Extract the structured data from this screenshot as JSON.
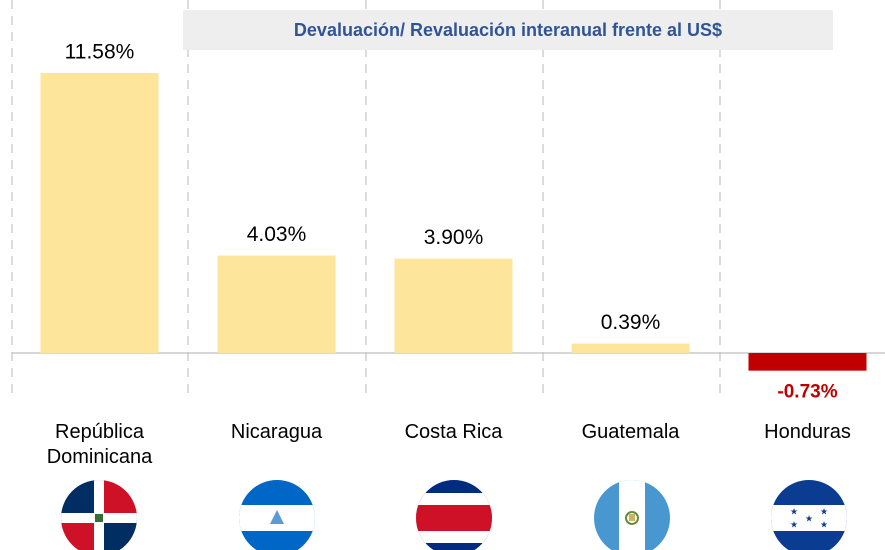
{
  "chart_data": {
    "type": "bar",
    "title": "Devaluación/ Revaluación interanual frente al US$",
    "categories": [
      "República Dominicana",
      "Nicaragua",
      "Costa Rica",
      "Guatemala",
      "Honduras"
    ],
    "values": [
      11.58,
      4.03,
      3.9,
      0.39,
      -0.73
    ],
    "value_labels": [
      "11.58%",
      "4.03%",
      "3.90%",
      "0.39%",
      "-0.73%"
    ],
    "color": "#fde59b",
    "negative_color": "#c00000"
  }
}
